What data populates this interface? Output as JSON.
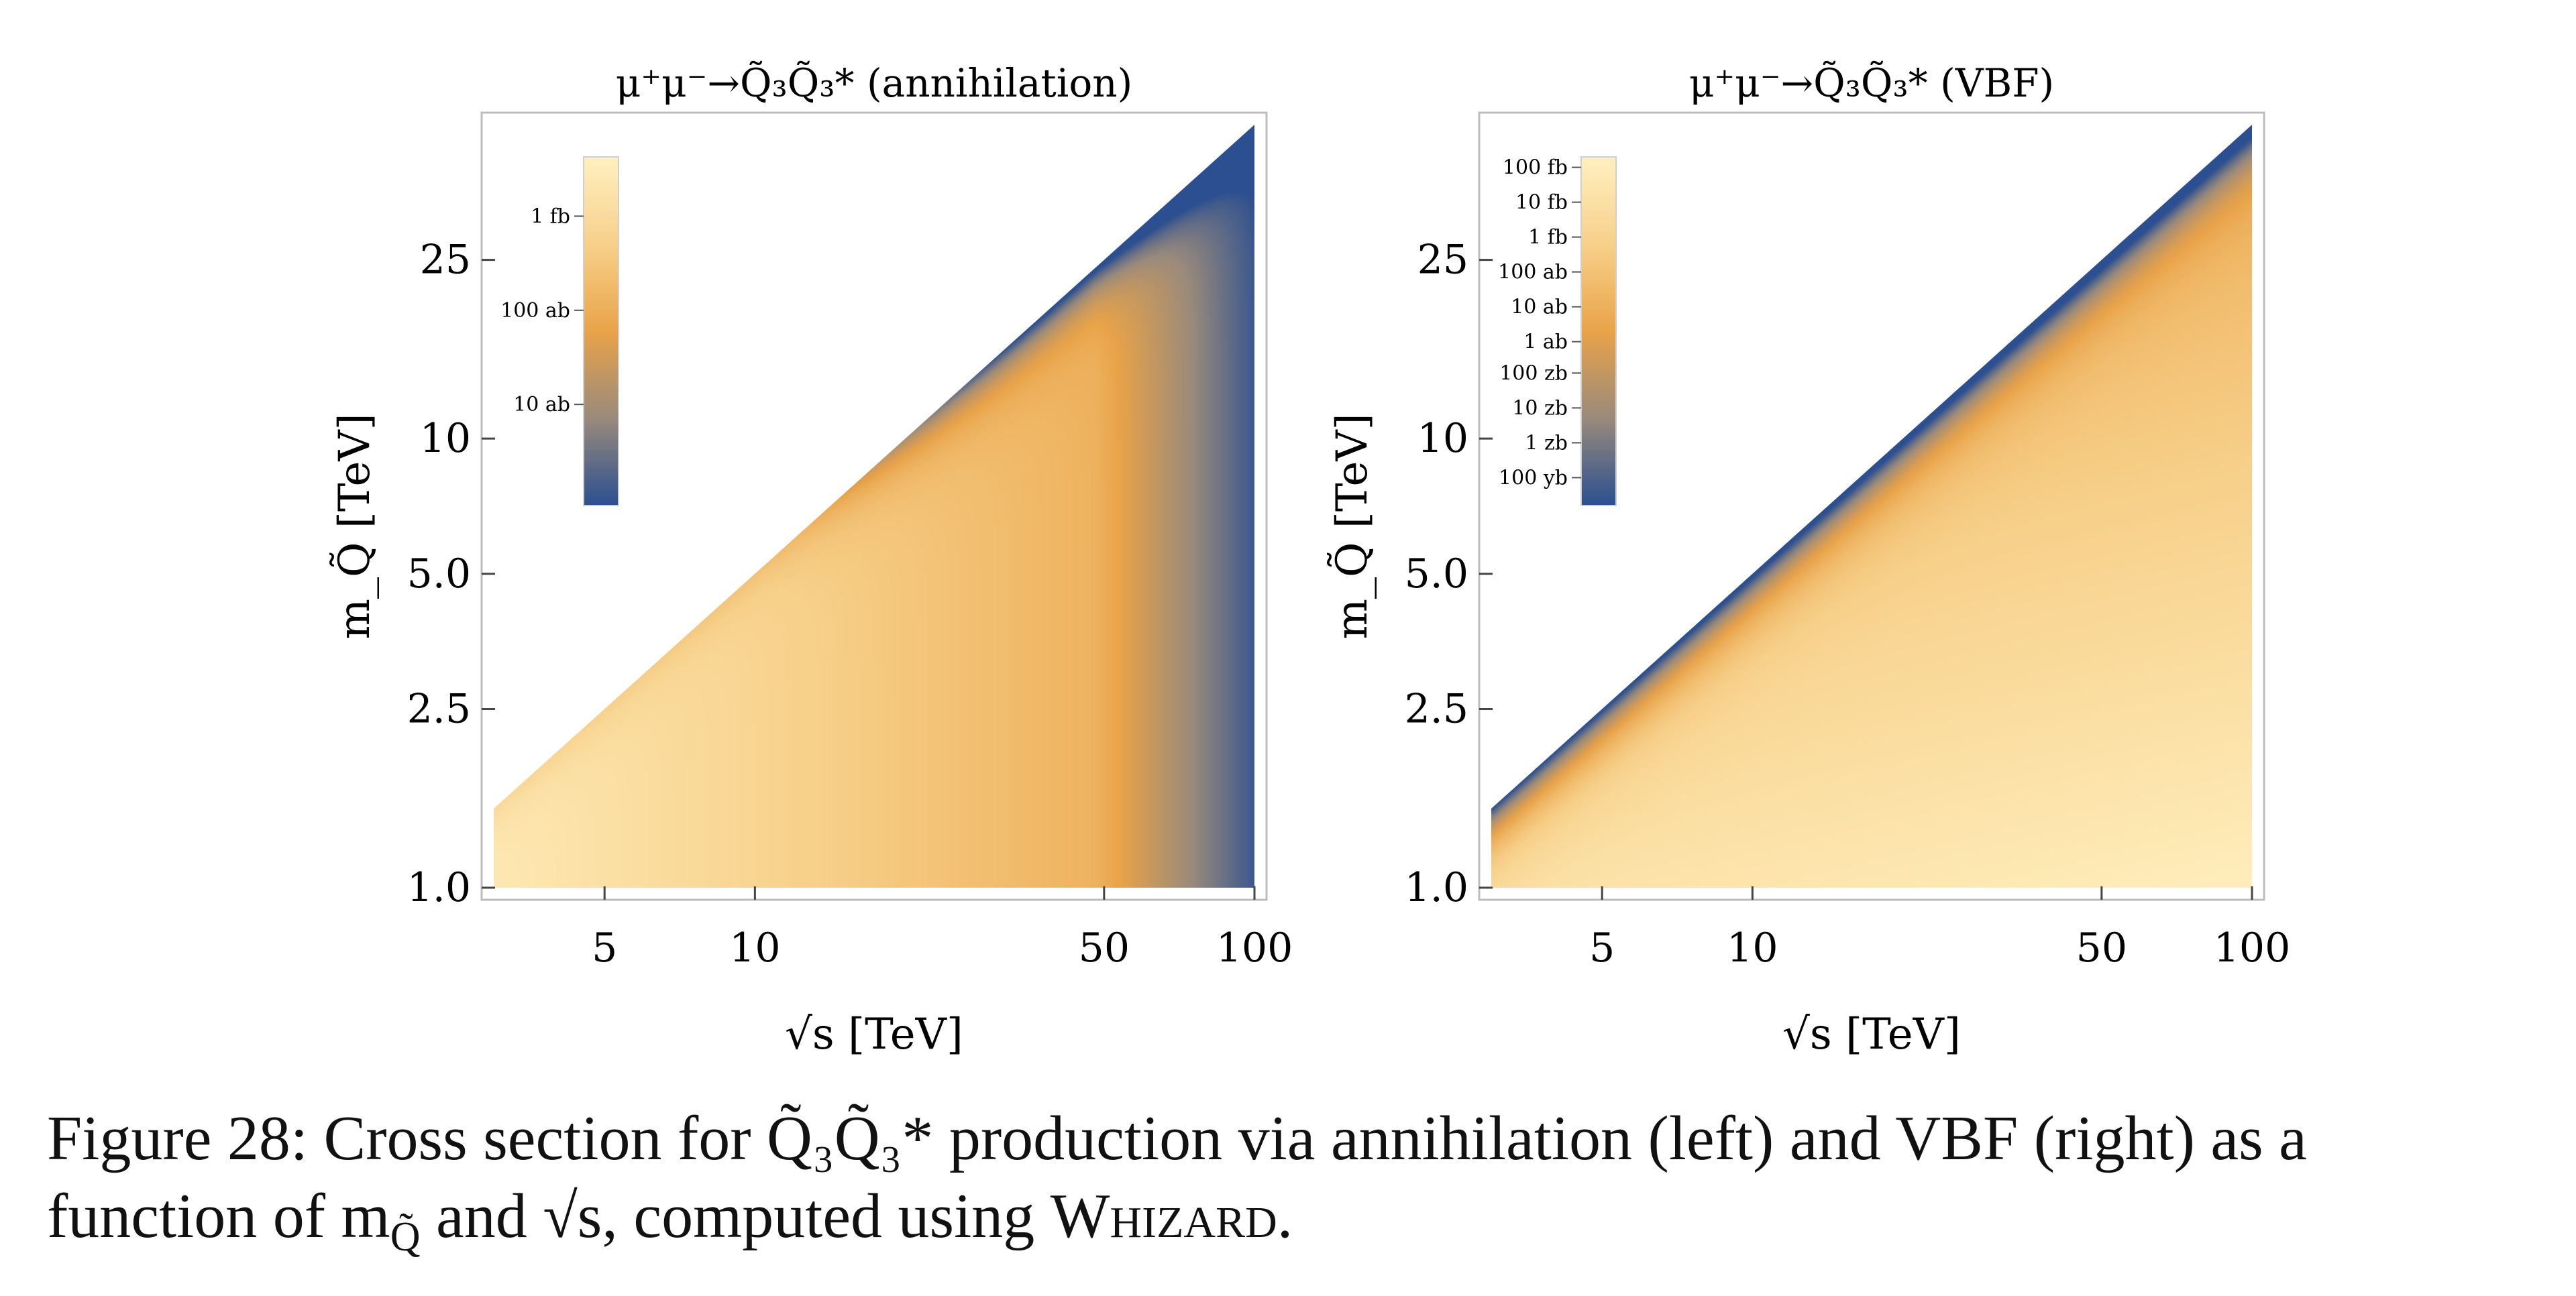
{
  "colors": {
    "colormap": [
      "#fff0c0",
      "#f7d08a",
      "#e9a349",
      "#998a7c",
      "#2b4f90"
    ],
    "panel_background": "#ffffff",
    "frame": "#bdbdbd"
  },
  "caption": {
    "line1": "Figure 28: Cross section for Q̃₃Q̃₃* production via annihilation (left) and VBF (right) as a",
    "line2_a": "function of m",
    "line2_sub": "Q̃",
    "line2_b": " and √s, computed using ",
    "line2_tool": "Whizard",
    "line2_end": "."
  },
  "chart_data": [
    {
      "type": "heatmap",
      "title": "μ⁺μ⁻→Q̃₃Q̃₃* (annihilation)",
      "xlabel": "√s  [TeV]",
      "ylabel": "m_Q̃ [TeV]",
      "xscale": "log",
      "yscale": "log",
      "xlim": [
        3,
        100
      ],
      "ylim": [
        1.0,
        50
      ],
      "xticks": [
        5,
        10,
        50,
        100
      ],
      "xtick_labels": [
        "5",
        "10",
        "50",
        "100"
      ],
      "yticks": [
        1.0,
        2.5,
        5.0,
        10,
        25
      ],
      "ytick_labels": [
        "1.0",
        "2.5",
        "5.0",
        "10",
        "25"
      ],
      "region": "kinematically allowed region m_Q̃ < √s/2 (white above diagonal)",
      "colorbar": {
        "position": "top-left, inside plot",
        "labels": [
          "1 fb",
          "100 ab",
          "10 ab"
        ],
        "label_fractions": [
          0.17,
          0.44,
          0.71
        ]
      },
      "color_field": "annihilation",
      "legend": "none"
    },
    {
      "type": "heatmap",
      "title": "μ⁺μ⁻→Q̃₃Q̃₃* (VBF)",
      "xlabel": "√s  [TeV]",
      "ylabel": "m_Q̃ [TeV]",
      "xscale": "log",
      "yscale": "log",
      "xlim": [
        3,
        100
      ],
      "ylim": [
        1.0,
        50
      ],
      "xticks": [
        5,
        10,
        50,
        100
      ],
      "xtick_labels": [
        "5",
        "10",
        "50",
        "100"
      ],
      "yticks": [
        1.0,
        2.5,
        5.0,
        10,
        25
      ],
      "ytick_labels": [
        "1.0",
        "2.5",
        "5.0",
        "10",
        "25"
      ],
      "region": "kinematically allowed region m_Q̃ < √s/2 (white above diagonal)",
      "colorbar": {
        "position": "top-left, inside plot",
        "labels": [
          "100 fb",
          "10 fb",
          "1 fb",
          "100 ab",
          "10 ab",
          "1 ab",
          "100 zb",
          "10 zb",
          "1 zb",
          "100 yb"
        ],
        "label_fractions": [
          0.03,
          0.13,
          0.23,
          0.33,
          0.43,
          0.53,
          0.62,
          0.72,
          0.82,
          0.92
        ]
      },
      "color_field": "vbf",
      "legend": "none"
    }
  ]
}
